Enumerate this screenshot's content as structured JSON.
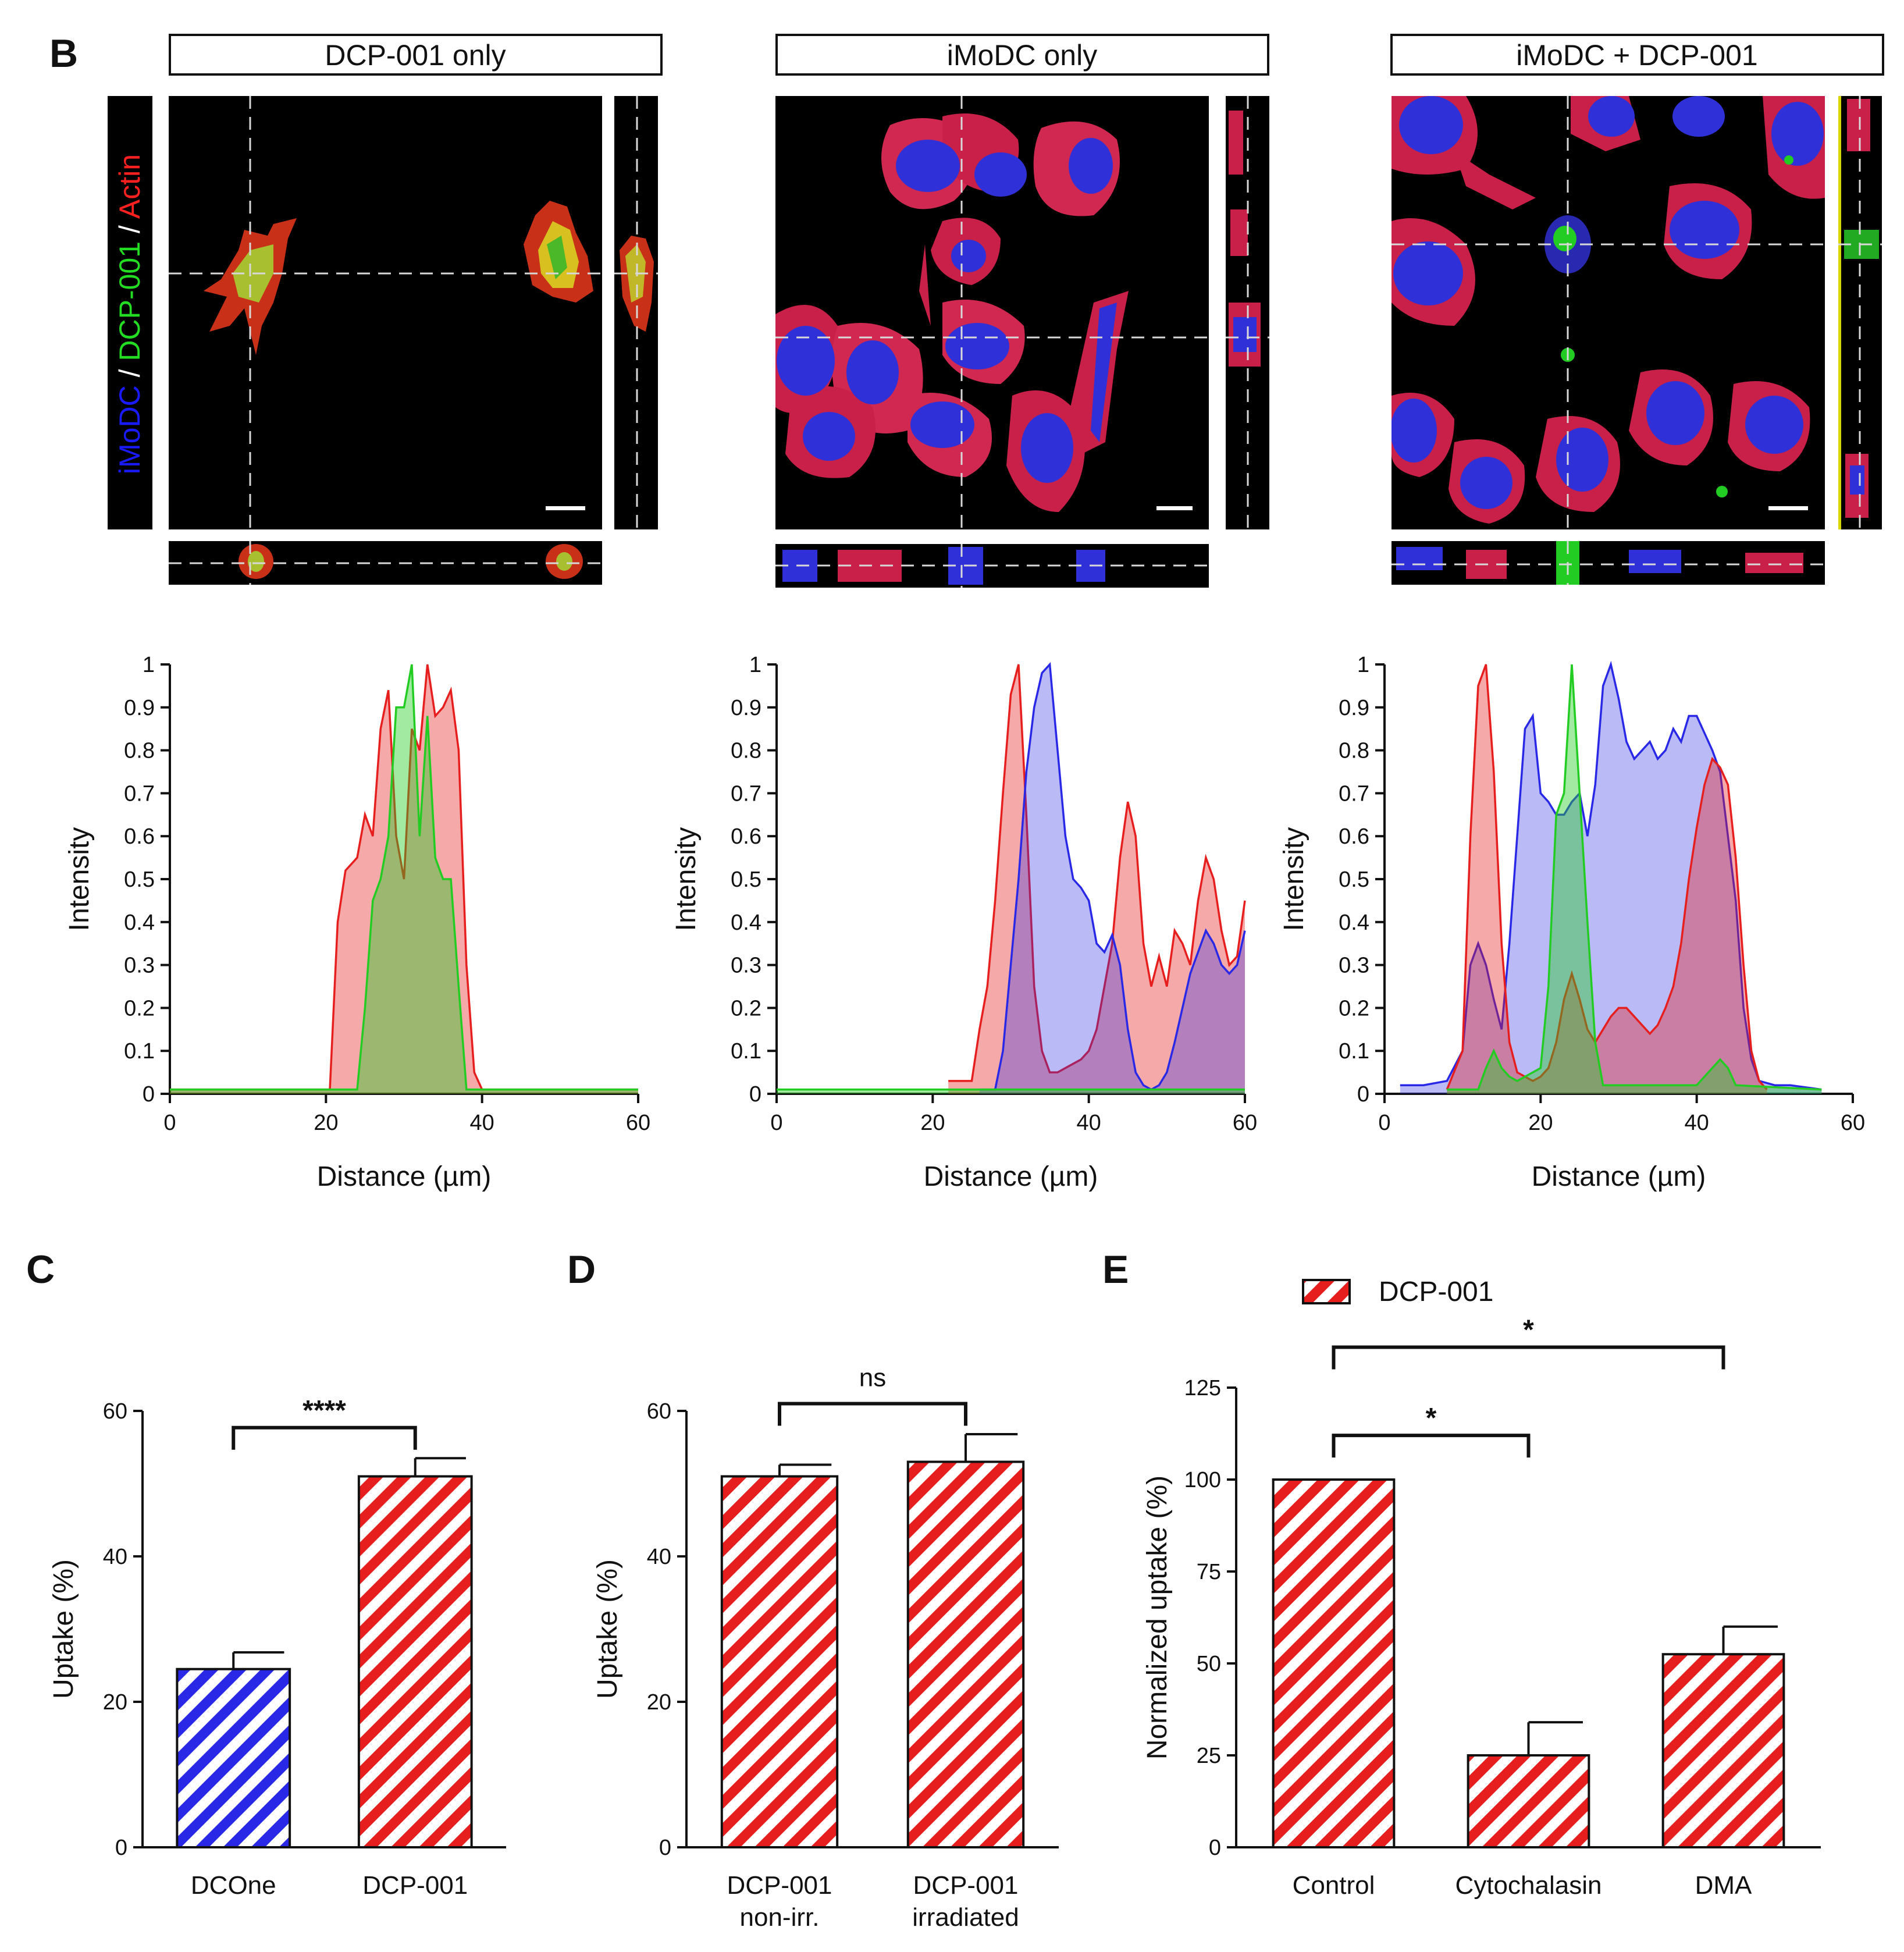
{
  "panels": {
    "b": {
      "label": "B",
      "channel_label": [
        {
          "text": "iMoDC",
          "color": "#1a1aff"
        },
        {
          "text": " / ",
          "color": "#ffffff"
        },
        {
          "text": "DCP-001",
          "color": "#22dd22"
        },
        {
          "text": " / ",
          "color": "#ffffff"
        },
        {
          "text": "Actin",
          "color": "#ff2020"
        }
      ],
      "columns": [
        {
          "title": "DCP-001 only"
        },
        {
          "title": "iMoDC only"
        },
        {
          "title": "iMoDC + DCP-001"
        }
      ]
    },
    "c": {
      "label": "C"
    },
    "d": {
      "label": "D"
    },
    "e": {
      "label": "E"
    }
  },
  "colors": {
    "blue": "#2828e6",
    "red": "#e61e1e",
    "green": "#22cc22",
    "dashed": "#d8d8d8"
  },
  "chart_data": [
    {
      "id": "b-profile-1",
      "type": "area",
      "xlabel": "Distance (µm)",
      "ylabel": "Intensity",
      "xlim": [
        0,
        60
      ],
      "ylim": [
        0,
        1
      ],
      "xticks": [
        0,
        20,
        40,
        60
      ],
      "yticks": [
        0,
        0.1,
        0.2,
        0.3,
        0.4,
        0.5,
        0.6,
        0.7,
        0.8,
        0.9,
        1
      ],
      "series": [
        {
          "name": "Actin",
          "color": "#e61e1e",
          "x": [
            0,
            20.5,
            21.5,
            22.5,
            24,
            25,
            26,
            27,
            28,
            29,
            30,
            31,
            32,
            33,
            34,
            35,
            36,
            37,
            38,
            39,
            40,
            60
          ],
          "y": [
            0.01,
            0.01,
            0.4,
            0.52,
            0.55,
            0.65,
            0.6,
            0.85,
            0.94,
            0.6,
            0.5,
            0.85,
            0.8,
            1.0,
            0.88,
            0.9,
            0.94,
            0.8,
            0.3,
            0.05,
            0.01,
            0.01
          ]
        },
        {
          "name": "DCP-001",
          "color": "#22cc22",
          "x": [
            0,
            24,
            25,
            26,
            27,
            28,
            29,
            30,
            31,
            32,
            33,
            34,
            35,
            36,
            37,
            38,
            60
          ],
          "y": [
            0.01,
            0.01,
            0.2,
            0.45,
            0.5,
            0.6,
            0.9,
            0.9,
            1.0,
            0.6,
            0.88,
            0.55,
            0.5,
            0.5,
            0.25,
            0.01,
            0.01
          ]
        }
      ]
    },
    {
      "id": "b-profile-2",
      "type": "area",
      "xlabel": "Distance (µm)",
      "ylabel": "Intensity",
      "xlim": [
        0,
        60
      ],
      "ylim": [
        0,
        1
      ],
      "xticks": [
        0,
        20,
        40,
        60
      ],
      "yticks": [
        0,
        0.1,
        0.2,
        0.3,
        0.4,
        0.5,
        0.6,
        0.7,
        0.8,
        0.9,
        1
      ],
      "series": [
        {
          "name": "Actin",
          "color": "#e61e1e",
          "x": [
            22,
            25,
            26,
            27,
            28,
            29,
            30,
            31,
            32,
            33,
            34,
            35,
            36,
            37,
            38,
            39,
            40,
            41,
            42,
            43,
            44,
            45,
            46,
            47,
            48,
            49,
            50,
            51,
            52,
            53,
            54,
            55,
            56,
            57,
            58,
            59,
            60
          ],
          "y": [
            0.03,
            0.03,
            0.15,
            0.25,
            0.45,
            0.7,
            0.93,
            1.0,
            0.65,
            0.25,
            0.1,
            0.05,
            0.05,
            0.06,
            0.07,
            0.08,
            0.1,
            0.15,
            0.25,
            0.35,
            0.55,
            0.68,
            0.6,
            0.35,
            0.25,
            0.32,
            0.25,
            0.38,
            0.35,
            0.3,
            0.45,
            0.55,
            0.5,
            0.38,
            0.3,
            0.32,
            0.45
          ]
        },
        {
          "name": "iMoDC",
          "color": "#2828e6",
          "x": [
            26,
            28,
            29,
            30,
            31,
            32,
            33,
            34,
            35,
            36,
            37,
            38,
            39,
            40,
            41,
            42,
            43,
            44,
            45,
            46,
            47,
            48,
            49,
            50,
            51,
            52,
            53,
            54,
            55,
            56,
            57,
            58,
            59,
            60
          ],
          "y": [
            0.01,
            0.01,
            0.1,
            0.3,
            0.5,
            0.75,
            0.9,
            0.98,
            1.0,
            0.8,
            0.6,
            0.5,
            0.48,
            0.45,
            0.35,
            0.33,
            0.37,
            0.3,
            0.15,
            0.05,
            0.02,
            0.01,
            0.02,
            0.05,
            0.12,
            0.2,
            0.28,
            0.33,
            0.38,
            0.35,
            0.3,
            0.28,
            0.3,
            0.38
          ]
        },
        {
          "name": "DCP-001",
          "color": "#22cc22",
          "x": [
            0,
            60
          ],
          "y": [
            0.01,
            0.01
          ]
        }
      ]
    },
    {
      "id": "b-profile-3",
      "type": "area",
      "xlabel": "Distance (µm)",
      "ylabel": "Intensity",
      "xlim": [
        0,
        60
      ],
      "ylim": [
        0,
        1
      ],
      "xticks": [
        0,
        20,
        40,
        60
      ],
      "yticks": [
        0,
        0.1,
        0.2,
        0.3,
        0.4,
        0.5,
        0.6,
        0.7,
        0.8,
        0.9,
        1
      ],
      "series": [
        {
          "name": "iMoDC",
          "color": "#2828e6",
          "x": [
            2,
            5,
            8,
            10,
            11,
            12,
            13,
            14,
            15,
            16,
            17,
            18,
            19,
            20,
            21,
            22,
            23,
            24,
            25,
            26,
            27,
            28,
            29,
            30,
            31,
            32,
            33,
            34,
            35,
            36,
            37,
            38,
            39,
            40,
            41,
            42,
            43,
            44,
            45,
            46,
            47,
            48,
            50,
            52,
            56
          ],
          "y": [
            0.02,
            0.02,
            0.03,
            0.1,
            0.3,
            0.35,
            0.3,
            0.22,
            0.15,
            0.35,
            0.6,
            0.85,
            0.88,
            0.7,
            0.68,
            0.65,
            0.65,
            0.68,
            0.7,
            0.6,
            0.72,
            0.95,
            1.0,
            0.92,
            0.82,
            0.78,
            0.8,
            0.82,
            0.78,
            0.8,
            0.85,
            0.82,
            0.88,
            0.88,
            0.84,
            0.8,
            0.75,
            0.6,
            0.45,
            0.2,
            0.08,
            0.03,
            0.02,
            0.02,
            0.01
          ]
        },
        {
          "name": "Actin",
          "color": "#e61e1e",
          "x": [
            8,
            10,
            11,
            12,
            13,
            14,
            15,
            16,
            17,
            18,
            19,
            20,
            21,
            22,
            23,
            24,
            25,
            26,
            27,
            28,
            29,
            30,
            31,
            32,
            33,
            34,
            35,
            36,
            37,
            38,
            39,
            40,
            41,
            42,
            43,
            44,
            45,
            46,
            47,
            48,
            49
          ],
          "y": [
            0.01,
            0.1,
            0.6,
            0.95,
            1.0,
            0.75,
            0.35,
            0.12,
            0.05,
            0.04,
            0.03,
            0.04,
            0.06,
            0.12,
            0.22,
            0.28,
            0.22,
            0.15,
            0.12,
            0.15,
            0.18,
            0.2,
            0.2,
            0.18,
            0.16,
            0.14,
            0.16,
            0.2,
            0.25,
            0.35,
            0.5,
            0.62,
            0.72,
            0.78,
            0.76,
            0.72,
            0.55,
            0.3,
            0.1,
            0.03,
            0.01
          ]
        },
        {
          "name": "DCP-001",
          "color": "#22cc22",
          "x": [
            8,
            12,
            13,
            14,
            15,
            16,
            17,
            18,
            19,
            20,
            21,
            22,
            23,
            24,
            25,
            26,
            27,
            28,
            40,
            42,
            43,
            44,
            45,
            56
          ],
          "y": [
            0.01,
            0.01,
            0.06,
            0.1,
            0.06,
            0.04,
            0.03,
            0.04,
            0.05,
            0.06,
            0.25,
            0.65,
            0.7,
            1.0,
            0.7,
            0.4,
            0.12,
            0.02,
            0.02,
            0.06,
            0.08,
            0.06,
            0.02,
            0.01
          ]
        }
      ]
    },
    {
      "id": "c",
      "type": "bar",
      "ylabel": "Uptake (%)",
      "ylim": [
        0,
        60
      ],
      "yticks": [
        0,
        20,
        40,
        60
      ],
      "categories": [
        "DCOne",
        "DCP-001"
      ],
      "values": [
        24.5,
        51
      ],
      "errors": [
        2.3,
        2.5
      ],
      "colors": [
        "#2828e6",
        "#e61e1e"
      ],
      "brackets": [
        {
          "from": 0,
          "to": 1,
          "label": "****"
        }
      ]
    },
    {
      "id": "d",
      "type": "bar",
      "ylabel": "Uptake (%)",
      "ylim": [
        0,
        60
      ],
      "yticks": [
        0,
        20,
        40,
        60
      ],
      "categories": [
        "DCP-001",
        "DCP-001"
      ],
      "subcategories": [
        "non-irr.",
        "irradiated"
      ],
      "values": [
        51,
        53
      ],
      "errors": [
        1.6,
        3.8
      ],
      "colors": [
        "#e61e1e",
        "#e61e1e"
      ],
      "brackets": [
        {
          "from": 0,
          "to": 1,
          "label": "ns"
        }
      ]
    },
    {
      "id": "e",
      "type": "bar",
      "ylabel": "Normalized uptake (%)",
      "ylim": [
        0,
        125
      ],
      "yticks": [
        0,
        25,
        50,
        75,
        100,
        125
      ],
      "categories": [
        "Control",
        "Cytochalasin",
        "DMA"
      ],
      "values": [
        100,
        25,
        52.5
      ],
      "errors": [
        0,
        9,
        7.5
      ],
      "colors": [
        "#e61e1e",
        "#e61e1e",
        "#e61e1e"
      ],
      "legend": {
        "label": "DCP-001",
        "position": "top"
      },
      "brackets": [
        {
          "from": 0,
          "to": 1,
          "label": "*"
        },
        {
          "from": 0,
          "to": 2,
          "label": "*"
        }
      ]
    }
  ]
}
